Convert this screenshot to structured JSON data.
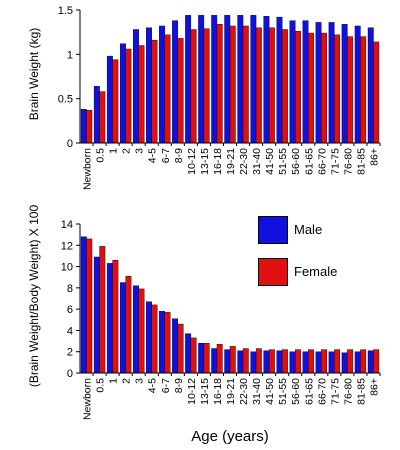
{
  "chart_data": [
    {
      "type": "bar",
      "ylabel": "Brain Weight (kg)",
      "ylim": [
        0,
        1.5
      ],
      "yticks": [
        "0",
        "0.5",
        "1",
        "1.5"
      ],
      "categories": [
        "Newborn",
        "0.5",
        "1",
        "2",
        "3",
        "4-5",
        "6-7",
        "8-9",
        "10-12",
        "13-15",
        "16-18",
        "19-21",
        "22-30",
        "31-40",
        "41-50",
        "51-55",
        "56-60",
        "61-65",
        "66-70",
        "71-75",
        "76-80",
        "81-85",
        "86+"
      ],
      "series": [
        {
          "name": "Male",
          "color": "#1010e0",
          "values": [
            0.38,
            0.64,
            0.98,
            1.12,
            1.28,
            1.3,
            1.32,
            1.38,
            1.44,
            1.44,
            1.44,
            1.44,
            1.44,
            1.44,
            1.43,
            1.42,
            1.38,
            1.38,
            1.36,
            1.36,
            1.34,
            1.32,
            1.3
          ]
        },
        {
          "name": "Female",
          "color": "#e01010",
          "values": [
            0.37,
            0.58,
            0.94,
            1.06,
            1.1,
            1.16,
            1.22,
            1.18,
            1.28,
            1.29,
            1.34,
            1.32,
            1.32,
            1.3,
            1.3,
            1.28,
            1.26,
            1.24,
            1.24,
            1.22,
            1.2,
            1.2,
            1.14
          ]
        }
      ],
      "grid": false
    },
    {
      "type": "bar",
      "ylabel": "(Brain Weight/Body Weight) X 100",
      "xlabel": "Age (years)",
      "ylim": [
        0,
        14
      ],
      "yticks": [
        "0",
        "2",
        "4",
        "6",
        "8",
        "10",
        "12",
        "14"
      ],
      "categories": [
        "Newborn",
        "0.5",
        "1",
        "2",
        "3",
        "4-5",
        "6-7",
        "8-9",
        "10-12",
        "13-15",
        "16-18",
        "19-21",
        "22-30",
        "31-40",
        "41-50",
        "51-55",
        "56-60",
        "61-65",
        "66-70",
        "71-75",
        "76-80",
        "81-85",
        "86+"
      ],
      "series": [
        {
          "name": "Male",
          "color": "#1010e0",
          "values": [
            12.8,
            10.9,
            10.3,
            8.5,
            8.2,
            6.7,
            5.8,
            5.1,
            3.7,
            2.8,
            2.3,
            2.2,
            2.1,
            2.0,
            2.1,
            2.1,
            2.0,
            2.0,
            2.0,
            2.0,
            1.9,
            2.0,
            2.1
          ]
        },
        {
          "name": "Female",
          "color": "#e01010",
          "values": [
            12.6,
            11.9,
            10.6,
            9.1,
            7.9,
            6.4,
            5.7,
            4.6,
            3.3,
            2.8,
            2.7,
            2.5,
            2.3,
            2.3,
            2.2,
            2.2,
            2.2,
            2.2,
            2.2,
            2.2,
            2.2,
            2.2,
            2.2
          ]
        }
      ],
      "legend": {
        "position": "top-right",
        "entries": [
          "Male",
          "Female"
        ]
      },
      "grid": false
    }
  ]
}
